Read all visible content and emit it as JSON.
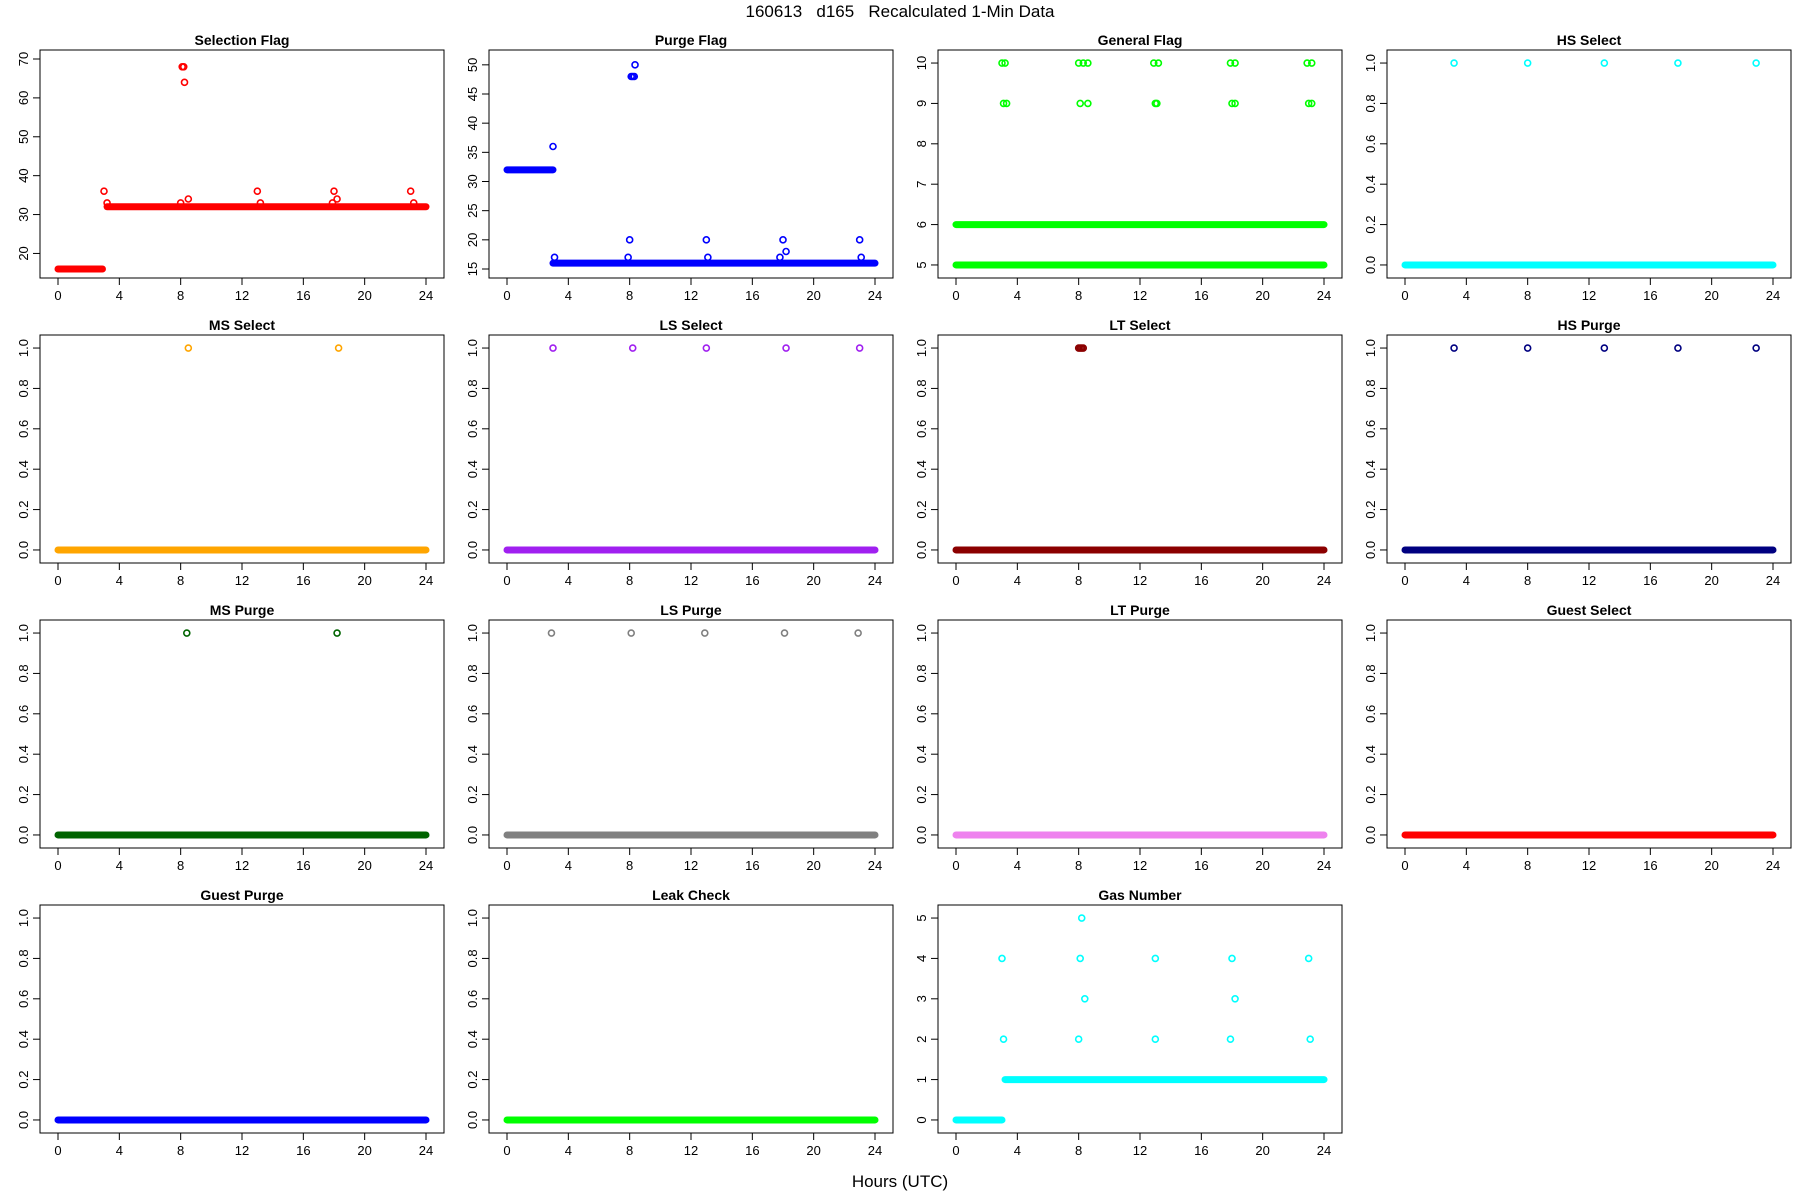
{
  "page_title": "160613   d165   Recalculated 1-Min Data",
  "x_axis_label": "Hours (UTC)",
  "chart_data": [
    {
      "type": "scatter",
      "title": "Selection Flag",
      "color": "#ff0000",
      "xlim": [
        0,
        24
      ],
      "xticks": [
        0,
        4,
        8,
        12,
        16,
        20,
        24
      ],
      "yticks": [
        20,
        30,
        40,
        50,
        60,
        70
      ],
      "ylim": [
        16,
        70
      ],
      "baseline": [
        {
          "from": 0,
          "to": 2.9,
          "y": 16
        },
        {
          "from": 3.2,
          "to": 24,
          "y": 32
        }
      ],
      "points": [
        [
          3.0,
          36
        ],
        [
          3.2,
          33
        ],
        [
          8.1,
          68
        ],
        [
          8.2,
          68
        ],
        [
          8.25,
          64
        ],
        [
          8.0,
          33
        ],
        [
          8.5,
          34
        ],
        [
          13.0,
          36
        ],
        [
          13.2,
          33
        ],
        [
          18.0,
          36
        ],
        [
          18.2,
          34
        ],
        [
          17.9,
          33
        ],
        [
          23.0,
          36
        ],
        [
          23.2,
          33
        ]
      ]
    },
    {
      "type": "scatter",
      "title": "Purge Flag",
      "color": "#0000ff",
      "xlim": [
        0,
        24
      ],
      "xticks": [
        0,
        4,
        8,
        12,
        16,
        20,
        24
      ],
      "yticks": [
        15,
        20,
        25,
        30,
        35,
        40,
        45,
        50
      ],
      "ylim": [
        15,
        51
      ],
      "baseline": [
        {
          "from": 0,
          "to": 3.0,
          "y": 32
        },
        {
          "from": 3.0,
          "to": 24,
          "y": 16
        }
      ],
      "points": [
        [
          3.0,
          36
        ],
        [
          3.1,
          17
        ],
        [
          8.0,
          20
        ],
        [
          7.9,
          17
        ],
        [
          8.1,
          48
        ],
        [
          8.2,
          48
        ],
        [
          8.3,
          48
        ],
        [
          8.35,
          50
        ],
        [
          13.0,
          20
        ],
        [
          13.1,
          17
        ],
        [
          18.0,
          20
        ],
        [
          18.2,
          18
        ],
        [
          17.8,
          17
        ],
        [
          23.0,
          20
        ],
        [
          23.1,
          17
        ]
      ]
    },
    {
      "type": "scatter",
      "title": "General Flag",
      "color": "#00ff00",
      "xlim": [
        0,
        24
      ],
      "xticks": [
        0,
        4,
        8,
        12,
        16,
        20,
        24
      ],
      "yticks": [
        5,
        6,
        7,
        8,
        9,
        10
      ],
      "ylim": [
        4.9,
        10.1
      ],
      "baseline": [
        {
          "from": 0,
          "to": 24,
          "y": 5
        },
        {
          "from": 0,
          "to": 24,
          "y": 6
        }
      ],
      "points": [
        [
          3.0,
          10
        ],
        [
          3.2,
          10
        ],
        [
          3.1,
          9
        ],
        [
          3.3,
          9
        ],
        [
          8.0,
          10
        ],
        [
          8.3,
          10
        ],
        [
          8.6,
          10
        ],
        [
          8.1,
          9
        ],
        [
          8.6,
          9
        ],
        [
          12.9,
          10
        ],
        [
          13.2,
          10
        ],
        [
          13.0,
          9
        ],
        [
          13.1,
          9
        ],
        [
          17.9,
          10
        ],
        [
          18.2,
          10
        ],
        [
          18.0,
          9
        ],
        [
          18.2,
          9
        ],
        [
          22.9,
          10
        ],
        [
          23.2,
          10
        ],
        [
          23.0,
          9
        ],
        [
          23.2,
          9
        ]
      ]
    },
    {
      "type": "scatter",
      "title": "HS Select",
      "color": "#00ffff",
      "xlim": [
        0,
        24
      ],
      "xticks": [
        0,
        4,
        8,
        12,
        16,
        20,
        24
      ],
      "yticks": [
        0.0,
        0.2,
        0.4,
        0.6,
        0.8,
        1.0
      ],
      "ylim": [
        -0.02,
        1.02
      ],
      "baseline": [
        {
          "from": 0,
          "to": 24,
          "y": 0
        }
      ],
      "points": [
        [
          3.2,
          1
        ],
        [
          8.0,
          1
        ],
        [
          13.0,
          1
        ],
        [
          17.8,
          1
        ],
        [
          22.9,
          1
        ]
      ]
    },
    {
      "type": "scatter",
      "title": "MS Select",
      "color": "#ffa500",
      "xlim": [
        0,
        24
      ],
      "xticks": [
        0,
        4,
        8,
        12,
        16,
        20,
        24
      ],
      "yticks": [
        0.0,
        0.2,
        0.4,
        0.6,
        0.8,
        1.0
      ],
      "ylim": [
        -0.02,
        1.02
      ],
      "baseline": [
        {
          "from": 0,
          "to": 24,
          "y": 0
        }
      ],
      "points": [
        [
          8.5,
          1
        ],
        [
          18.3,
          1
        ]
      ]
    },
    {
      "type": "scatter",
      "title": "LS Select",
      "color": "#a020f0",
      "xlim": [
        0,
        24
      ],
      "xticks": [
        0,
        4,
        8,
        12,
        16,
        20,
        24
      ],
      "yticks": [
        0.0,
        0.2,
        0.4,
        0.6,
        0.8,
        1.0
      ],
      "ylim": [
        -0.02,
        1.02
      ],
      "baseline": [
        {
          "from": 0,
          "to": 24,
          "y": 0
        }
      ],
      "points": [
        [
          3.0,
          1
        ],
        [
          8.2,
          1
        ],
        [
          13.0,
          1
        ],
        [
          18.2,
          1
        ],
        [
          23.0,
          1
        ]
      ]
    },
    {
      "type": "scatter",
      "title": "LT Select",
      "color": "#8b0000",
      "xlim": [
        0,
        24
      ],
      "xticks": [
        0,
        4,
        8,
        12,
        16,
        20,
        24
      ],
      "yticks": [
        0.0,
        0.2,
        0.4,
        0.6,
        0.8,
        1.0
      ],
      "ylim": [
        -0.02,
        1.02
      ],
      "baseline": [
        {
          "from": 0,
          "to": 24,
          "y": 0
        }
      ],
      "points": [
        [
          8.0,
          1
        ],
        [
          8.1,
          1
        ],
        [
          8.2,
          1
        ],
        [
          8.3,
          1
        ]
      ]
    },
    {
      "type": "scatter",
      "title": "HS Purge",
      "color": "#000080",
      "xlim": [
        0,
        24
      ],
      "xticks": [
        0,
        4,
        8,
        12,
        16,
        20,
        24
      ],
      "yticks": [
        0.0,
        0.2,
        0.4,
        0.6,
        0.8,
        1.0
      ],
      "ylim": [
        -0.02,
        1.02
      ],
      "baseline": [
        {
          "from": 0,
          "to": 24,
          "y": 0
        }
      ],
      "points": [
        [
          3.2,
          1
        ],
        [
          8.0,
          1
        ],
        [
          13.0,
          1
        ],
        [
          17.8,
          1
        ],
        [
          22.9,
          1
        ]
      ]
    },
    {
      "type": "scatter",
      "title": "MS Purge",
      "color": "#006400",
      "xlim": [
        0,
        24
      ],
      "xticks": [
        0,
        4,
        8,
        12,
        16,
        20,
        24
      ],
      "yticks": [
        0.0,
        0.2,
        0.4,
        0.6,
        0.8,
        1.0
      ],
      "ylim": [
        -0.02,
        1.02
      ],
      "baseline": [
        {
          "from": 0,
          "to": 24,
          "y": 0
        }
      ],
      "points": [
        [
          8.4,
          1
        ],
        [
          18.2,
          1
        ]
      ]
    },
    {
      "type": "scatter",
      "title": "LS Purge",
      "color": "#808080",
      "xlim": [
        0,
        24
      ],
      "xticks": [
        0,
        4,
        8,
        12,
        16,
        20,
        24
      ],
      "yticks": [
        0.0,
        0.2,
        0.4,
        0.6,
        0.8,
        1.0
      ],
      "ylim": [
        -0.02,
        1.02
      ],
      "baseline": [
        {
          "from": 0,
          "to": 24,
          "y": 0
        }
      ],
      "points": [
        [
          2.9,
          1
        ],
        [
          8.1,
          1
        ],
        [
          12.9,
          1
        ],
        [
          18.1,
          1
        ],
        [
          22.9,
          1
        ]
      ]
    },
    {
      "type": "scatter",
      "title": "LT Purge",
      "color": "#ee82ee",
      "xlim": [
        0,
        24
      ],
      "xticks": [
        0,
        4,
        8,
        12,
        16,
        20,
        24
      ],
      "yticks": [
        0.0,
        0.2,
        0.4,
        0.6,
        0.8,
        1.0
      ],
      "ylim": [
        -0.02,
        1.02
      ],
      "baseline": [
        {
          "from": 0,
          "to": 24,
          "y": 0
        }
      ],
      "points": []
    },
    {
      "type": "scatter",
      "title": "Guest Select",
      "color": "#ff0000",
      "xlim": [
        0,
        24
      ],
      "xticks": [
        0,
        4,
        8,
        12,
        16,
        20,
        24
      ],
      "yticks": [
        0.0,
        0.2,
        0.4,
        0.6,
        0.8,
        1.0
      ],
      "ylim": [
        -0.02,
        1.02
      ],
      "baseline": [
        {
          "from": 0,
          "to": 24,
          "y": 0
        }
      ],
      "points": []
    },
    {
      "type": "scatter",
      "title": "Guest Purge",
      "color": "#0000ff",
      "xlim": [
        0,
        24
      ],
      "xticks": [
        0,
        4,
        8,
        12,
        16,
        20,
        24
      ],
      "yticks": [
        0.0,
        0.2,
        0.4,
        0.6,
        0.8,
        1.0
      ],
      "ylim": [
        -0.02,
        1.02
      ],
      "baseline": [
        {
          "from": 0,
          "to": 24,
          "y": 0
        }
      ],
      "points": []
    },
    {
      "type": "scatter",
      "title": "Leak Check",
      "color": "#00ff00",
      "xlim": [
        0,
        24
      ],
      "xticks": [
        0,
        4,
        8,
        12,
        16,
        20,
        24
      ],
      "yticks": [
        0.0,
        0.2,
        0.4,
        0.6,
        0.8,
        1.0
      ],
      "ylim": [
        -0.02,
        1.02
      ],
      "baseline": [
        {
          "from": 0,
          "to": 24,
          "y": 0
        }
      ],
      "points": []
    },
    {
      "type": "scatter",
      "title": "Gas Number",
      "color": "#00ffff",
      "xlim": [
        0,
        24
      ],
      "xticks": [
        0,
        4,
        8,
        12,
        16,
        20,
        24
      ],
      "yticks": [
        0,
        1,
        2,
        3,
        4,
        5
      ],
      "ylim": [
        -0.1,
        5.1
      ],
      "baseline": [
        {
          "from": 0,
          "to": 3.0,
          "y": 0
        },
        {
          "from": 3.2,
          "to": 24,
          "y": 1
        }
      ],
      "points": [
        [
          3.0,
          4
        ],
        [
          3.1,
          2
        ],
        [
          8.2,
          5
        ],
        [
          8.1,
          4
        ],
        [
          8.4,
          3
        ],
        [
          8.0,
          2
        ],
        [
          13.0,
          4
        ],
        [
          13.0,
          2
        ],
        [
          18.0,
          4
        ],
        [
          18.2,
          3
        ],
        [
          17.9,
          2
        ],
        [
          23.0,
          4
        ],
        [
          23.1,
          2
        ]
      ]
    }
  ]
}
